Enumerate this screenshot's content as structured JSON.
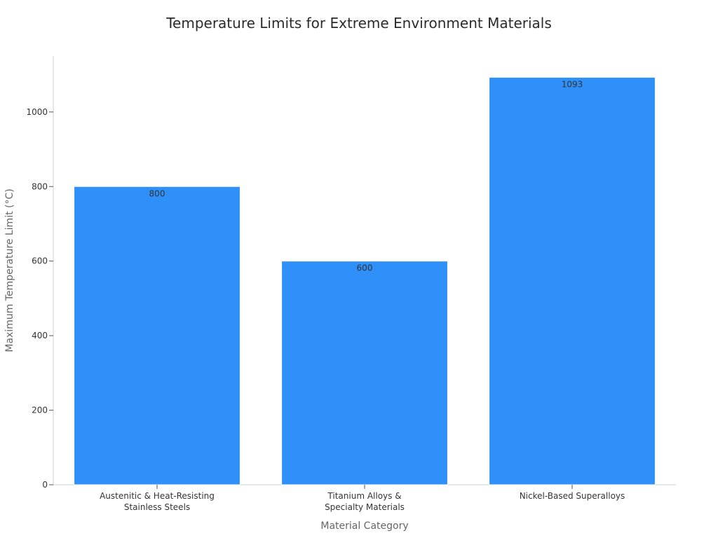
{
  "chart_data": {
    "type": "bar",
    "title": "Temperature Limits for Extreme Environment Materials",
    "xlabel": "Material Category",
    "ylabel": "Maximum Temperature Limit (°C)",
    "categories": [
      [
        "Austenitic & Heat-Resisting",
        "Stainless Steels"
      ],
      [
        "Titanium Alloys &",
        "Specialty Materials"
      ],
      [
        "Nickel-Based Superalloys"
      ]
    ],
    "values": [
      800,
      600,
      1093
    ],
    "ylim": [
      0,
      1150
    ],
    "yticks": [
      0,
      200,
      400,
      600,
      800,
      1000
    ],
    "grid": false,
    "legend": "none",
    "bar_color": "#2e90f8"
  }
}
